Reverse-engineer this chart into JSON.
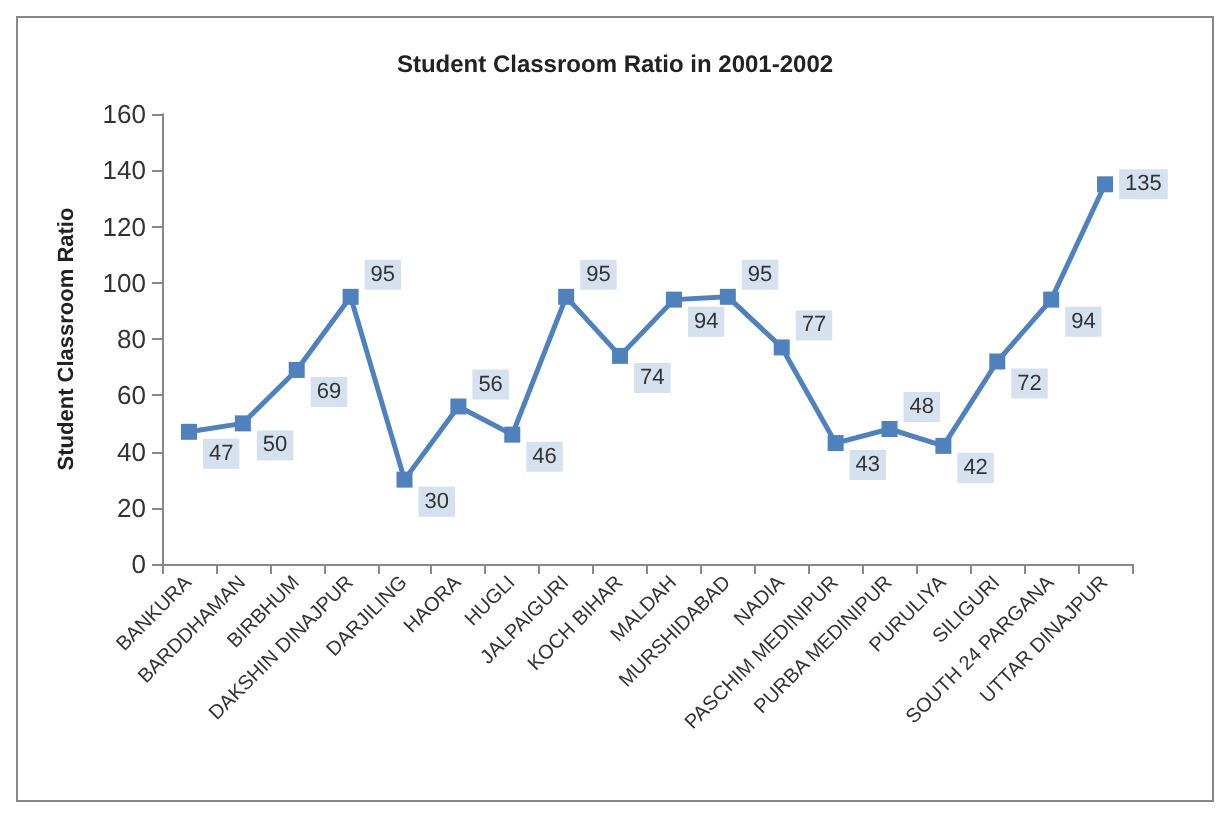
{
  "chart_data": {
    "type": "line",
    "title": "Student Classroom Ratio in 2001-2002",
    "ylabel": "Student Classroom Ratio",
    "categories": [
      "BANKURA",
      "BARDDHAMAN",
      "BIRBHUM",
      "DAKSHIN DINAJPUR",
      "DARJILING",
      "HAORA",
      "HUGLI",
      "JALPAIGURI",
      "KOCH BIHAR",
      "MALDAH",
      "MURSHIDABAD",
      "NADIA",
      "PASCHIM MEDINIPUR",
      "PURBA MEDINIPUR",
      "PURULIYA",
      "SILIGURI",
      "SOUTH 24 PARGANA",
      "UTTAR DINAJPUR"
    ],
    "series": [
      {
        "color": "#4f81bd",
        "values": [
          47,
          50,
          69,
          95,
          30,
          56,
          46,
          95,
          74,
          94,
          95,
          77,
          43,
          48,
          42,
          72,
          94,
          135
        ]
      }
    ],
    "ylim": [
      0,
      160
    ],
    "yticks": [
      0,
      20,
      40,
      60,
      80,
      100,
      120,
      140,
      160
    ],
    "data_labels": true,
    "marker": "square",
    "line_style": "solid",
    "grid": false
  }
}
